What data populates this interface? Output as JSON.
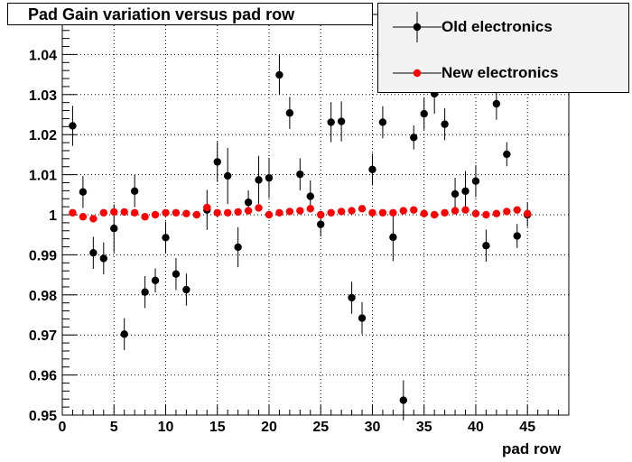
{
  "chart_data": {
    "type": "scatter",
    "title": "Pad Gain variation versus pad row",
    "xlabel": "pad row",
    "ylabel": "",
    "xlim": [
      0,
      49
    ],
    "ylim": [
      0.95,
      1.05
    ],
    "xticks": [
      "0",
      "5",
      "10",
      "15",
      "20",
      "25",
      "30",
      "35",
      "40",
      "45"
    ],
    "yticks": [
      "0.95",
      "0.96",
      "0.97",
      "0.98",
      "0.99",
      "1",
      "1.01",
      "1.02",
      "1.03",
      "1.04"
    ],
    "grid": true,
    "legend_position": "top-right",
    "series": [
      {
        "name": "Old electronics",
        "color": "#000000",
        "marker": "circle",
        "x": [
          1,
          2,
          3,
          4,
          5,
          6,
          7,
          8,
          9,
          10,
          11,
          12,
          14,
          15,
          16,
          17,
          18,
          19,
          20,
          21,
          22,
          23,
          24,
          25,
          26,
          27,
          28,
          29,
          30,
          31,
          32,
          33,
          34,
          35,
          36,
          37,
          38,
          39,
          40,
          41,
          42,
          43,
          44,
          45
        ],
        "y": [
          1.0222,
          1.0057,
          0.9905,
          0.9891,
          0.9966,
          0.9702,
          1.0059,
          0.9807,
          0.9836,
          0.9943,
          0.9852,
          0.9813,
          1.0012,
          1.0132,
          1.0097,
          0.9919,
          1.0031,
          1.0087,
          1.0092,
          1.0349,
          1.0254,
          1.0101,
          1.0046,
          0.9976,
          1.0231,
          1.0233,
          0.9793,
          0.9742,
          1.0113,
          1.0231,
          0.9944,
          0.9537,
          1.0193,
          1.0252,
          1.0302,
          1.0226,
          1.0052,
          1.0059,
          1.0084,
          0.9923,
          1.0277,
          1.0151,
          0.9947,
          1.0
        ],
        "err": [
          0.005,
          0.004,
          0.004,
          0.004,
          0.006,
          0.004,
          0.004,
          0.004,
          0.003,
          0.004,
          0.004,
          0.004,
          0.005,
          0.005,
          0.007,
          0.005,
          0.003,
          0.006,
          0.005,
          0.005,
          0.004,
          0.004,
          0.004,
          0.003,
          0.005,
          0.005,
          0.004,
          0.004,
          0.004,
          0.004,
          0.006,
          0.005,
          0.003,
          0.004,
          0.005,
          0.004,
          0.004,
          0.005,
          0.004,
          0.004,
          0.004,
          0.003,
          0.003,
          0.003
        ]
      },
      {
        "name": "New electronics",
        "color": "#ff0000",
        "marker": "circle",
        "x": [
          1,
          2,
          3,
          4,
          5,
          6,
          7,
          8,
          9,
          10,
          11,
          12,
          13,
          14,
          15,
          16,
          17,
          18,
          19,
          20,
          21,
          22,
          23,
          24,
          25,
          26,
          27,
          28,
          29,
          30,
          31,
          32,
          33,
          34,
          35,
          36,
          37,
          38,
          39,
          40,
          41,
          42,
          43,
          44,
          45
        ],
        "y": [
          1.0005,
          0.9995,
          0.999,
          1.0005,
          1.0007,
          1.0007,
          1.0005,
          0.9995,
          1.0,
          1.0005,
          1.0005,
          1.0003,
          1.0,
          1.0018,
          1.0005,
          1.0005,
          1.0007,
          1.001,
          1.0017,
          1.0,
          1.0005,
          1.0008,
          1.001,
          1.0015,
          1.0,
          1.0005,
          1.0008,
          1.001,
          1.0015,
          1.0005,
          1.0005,
          1.0005,
          1.001,
          1.0012,
          1.0003,
          1.0,
          1.0005,
          1.001,
          1.0012,
          1.0003,
          1.0,
          1.0003,
          1.0008,
          1.0012,
          1.0003
        ]
      }
    ]
  }
}
